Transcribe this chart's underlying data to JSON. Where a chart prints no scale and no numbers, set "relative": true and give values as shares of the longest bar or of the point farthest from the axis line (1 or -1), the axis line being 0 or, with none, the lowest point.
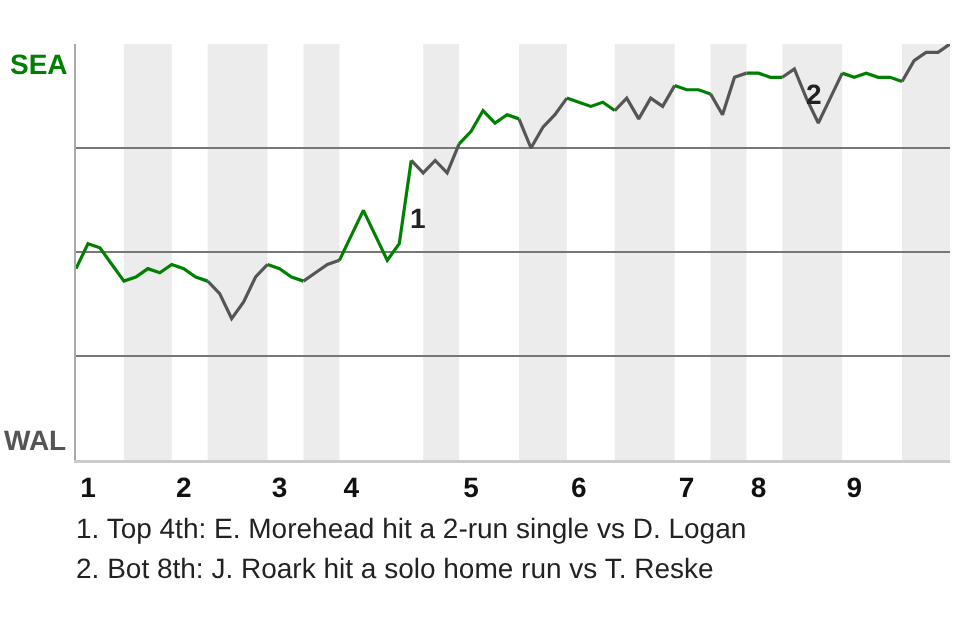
{
  "chart_data": {
    "type": "line",
    "relative": true,
    "grid": "y",
    "marker": "none",
    "line_style": "solid",
    "categories": [
      null,
      "1",
      null,
      null,
      null,
      null,
      null,
      null,
      null,
      "2",
      null,
      null,
      null,
      null,
      null,
      null,
      null,
      "3",
      null,
      null,
      null,
      null,
      null,
      "4",
      null,
      null,
      null,
      null,
      null,
      null,
      null,
      null,
      null,
      "5",
      null,
      null,
      null,
      null,
      null,
      null,
      null,
      null,
      "6",
      null,
      null,
      null,
      null,
      null,
      null,
      null,
      null,
      "7",
      null,
      null,
      null,
      null,
      null,
      "8",
      null,
      null,
      null,
      null,
      null,
      null,
      null,
      "9",
      null,
      null,
      null,
      null,
      null,
      null,
      null,
      null
    ],
    "series": [
      {
        "color": "#008000",
        "values": [
          0.46,
          0.52,
          0.51,
          0.47,
          0.43,
          0.44,
          0.46,
          0.45,
          0.47,
          0.46,
          0.44,
          0.43,
          null,
          null,
          null,
          null,
          null,
          null,
          null,
          null,
          null,
          null,
          null,
          null,
          null,
          null,
          null,
          null,
          null,
          null,
          null,
          null,
          null,
          null,
          null,
          null,
          null,
          null,
          null,
          null,
          null,
          null,
          null,
          null,
          null,
          null,
          null,
          null,
          null,
          null,
          null,
          null,
          null,
          null,
          null,
          null,
          null,
          null,
          null,
          null,
          null,
          null,
          null,
          null,
          null,
          null,
          null,
          null,
          null,
          null,
          null,
          null,
          null,
          null
        ]
      },
      {
        "color": "#555555",
        "values": [
          null,
          null,
          null,
          null,
          null,
          null,
          null,
          null,
          null,
          null,
          null,
          0.43,
          0.4,
          0.34,
          0.38,
          0.44,
          0.47,
          null,
          null,
          null,
          null,
          null,
          null,
          null,
          null,
          null,
          null,
          null,
          null,
          null,
          null,
          null,
          null,
          null,
          null,
          null,
          null,
          null,
          null,
          null,
          null,
          null,
          null,
          null,
          null,
          null,
          null,
          null,
          null,
          null,
          null,
          null,
          null,
          null,
          null,
          null,
          null,
          null,
          null,
          null,
          null,
          null,
          null,
          null,
          null,
          null,
          null,
          null,
          null,
          null,
          null,
          null,
          null,
          null
        ]
      },
      {
        "color": "#008000",
        "values": [
          null,
          null,
          null,
          null,
          null,
          null,
          null,
          null,
          null,
          null,
          null,
          null,
          null,
          null,
          null,
          null,
          0.47,
          0.46,
          0.44,
          0.43,
          null,
          null,
          null,
          null,
          null,
          null,
          null,
          null,
          null,
          null,
          null,
          null,
          null,
          null,
          null,
          null,
          null,
          null,
          null,
          null,
          null,
          null,
          null,
          null,
          null,
          null,
          null,
          null,
          null,
          null,
          null,
          null,
          null,
          null,
          null,
          null,
          null,
          null,
          null,
          null,
          null,
          null,
          null,
          null,
          null,
          null,
          null,
          null,
          null,
          null,
          null,
          null,
          null,
          null
        ]
      },
      {
        "color": "#555555",
        "values": [
          null,
          null,
          null,
          null,
          null,
          null,
          null,
          null,
          null,
          null,
          null,
          null,
          null,
          null,
          null,
          null,
          null,
          null,
          null,
          0.43,
          0.45,
          0.47,
          0.48,
          null,
          null,
          null,
          null,
          null,
          null,
          null,
          null,
          null,
          null,
          null,
          null,
          null,
          null,
          null,
          null,
          null,
          null,
          null,
          null,
          null,
          null,
          null,
          null,
          null,
          null,
          null,
          null,
          null,
          null,
          null,
          null,
          null,
          null,
          null,
          null,
          null,
          null,
          null,
          null,
          null,
          null,
          null,
          null,
          null,
          null,
          null,
          null,
          null,
          null,
          null
        ]
      },
      {
        "color": "#008000",
        "values": [
          null,
          null,
          null,
          null,
          null,
          null,
          null,
          null,
          null,
          null,
          null,
          null,
          null,
          null,
          null,
          null,
          null,
          null,
          null,
          null,
          null,
          null,
          0.48,
          0.54,
          0.6,
          0.54,
          0.48,
          0.52,
          0.72,
          null,
          null,
          null,
          null,
          null,
          null,
          null,
          null,
          null,
          null,
          null,
          null,
          null,
          null,
          null,
          null,
          null,
          null,
          null,
          null,
          null,
          null,
          null,
          null,
          null,
          null,
          null,
          null,
          null,
          null,
          null,
          null,
          null,
          null,
          null,
          null,
          null,
          null,
          null,
          null,
          null,
          null,
          null,
          null,
          null
        ]
      },
      {
        "color": "#555555",
        "values": [
          null,
          null,
          null,
          null,
          null,
          null,
          null,
          null,
          null,
          null,
          null,
          null,
          null,
          null,
          null,
          null,
          null,
          null,
          null,
          null,
          null,
          null,
          null,
          null,
          null,
          null,
          null,
          null,
          0.72,
          0.69,
          0.72,
          0.69,
          0.76,
          null,
          null,
          null,
          null,
          null,
          null,
          null,
          null,
          null,
          null,
          null,
          null,
          null,
          null,
          null,
          null,
          null,
          null,
          null,
          null,
          null,
          null,
          null,
          null,
          null,
          null,
          null,
          null,
          null,
          null,
          null,
          null,
          null,
          null,
          null,
          null,
          null,
          null,
          null,
          null,
          null
        ]
      },
      {
        "color": "#008000",
        "values": [
          null,
          null,
          null,
          null,
          null,
          null,
          null,
          null,
          null,
          null,
          null,
          null,
          null,
          null,
          null,
          null,
          null,
          null,
          null,
          null,
          null,
          null,
          null,
          null,
          null,
          null,
          null,
          null,
          null,
          null,
          null,
          null,
          0.76,
          0.79,
          0.84,
          0.81,
          0.83,
          0.82,
          null,
          null,
          null,
          null,
          null,
          null,
          null,
          null,
          null,
          null,
          null,
          null,
          null,
          null,
          null,
          null,
          null,
          null,
          null,
          null,
          null,
          null,
          null,
          null,
          null,
          null,
          null,
          null,
          null,
          null,
          null,
          null,
          null,
          null,
          null,
          null
        ]
      },
      {
        "color": "#555555",
        "values": [
          null,
          null,
          null,
          null,
          null,
          null,
          null,
          null,
          null,
          null,
          null,
          null,
          null,
          null,
          null,
          null,
          null,
          null,
          null,
          null,
          null,
          null,
          null,
          null,
          null,
          null,
          null,
          null,
          null,
          null,
          null,
          null,
          null,
          null,
          null,
          null,
          null,
          0.82,
          0.75,
          0.8,
          0.83,
          0.87,
          null,
          null,
          null,
          null,
          null,
          null,
          null,
          null,
          null,
          null,
          null,
          null,
          null,
          null,
          null,
          null,
          null,
          null,
          null,
          null,
          null,
          null,
          null,
          null,
          null,
          null,
          null,
          null,
          null,
          null,
          null,
          null
        ]
      },
      {
        "color": "#008000",
        "values": [
          null,
          null,
          null,
          null,
          null,
          null,
          null,
          null,
          null,
          null,
          null,
          null,
          null,
          null,
          null,
          null,
          null,
          null,
          null,
          null,
          null,
          null,
          null,
          null,
          null,
          null,
          null,
          null,
          null,
          null,
          null,
          null,
          null,
          null,
          null,
          null,
          null,
          null,
          null,
          null,
          null,
          0.87,
          0.86,
          0.85,
          0.86,
          0.84,
          null,
          null,
          null,
          null,
          null,
          null,
          null,
          null,
          null,
          null,
          null,
          null,
          null,
          null,
          null,
          null,
          null,
          null,
          null,
          null,
          null,
          null,
          null,
          null,
          null,
          null,
          null,
          null
        ]
      },
      {
        "color": "#555555",
        "values": [
          null,
          null,
          null,
          null,
          null,
          null,
          null,
          null,
          null,
          null,
          null,
          null,
          null,
          null,
          null,
          null,
          null,
          null,
          null,
          null,
          null,
          null,
          null,
          null,
          null,
          null,
          null,
          null,
          null,
          null,
          null,
          null,
          null,
          null,
          null,
          null,
          null,
          null,
          null,
          null,
          null,
          null,
          null,
          null,
          null,
          0.84,
          0.87,
          0.82,
          0.87,
          0.85,
          0.9,
          null,
          null,
          null,
          null,
          null,
          null,
          null,
          null,
          null,
          null,
          null,
          null,
          null,
          null,
          null,
          null,
          null,
          null,
          null,
          null,
          null,
          null,
          null
        ]
      },
      {
        "color": "#008000",
        "values": [
          null,
          null,
          null,
          null,
          null,
          null,
          null,
          null,
          null,
          null,
          null,
          null,
          null,
          null,
          null,
          null,
          null,
          null,
          null,
          null,
          null,
          null,
          null,
          null,
          null,
          null,
          null,
          null,
          null,
          null,
          null,
          null,
          null,
          null,
          null,
          null,
          null,
          null,
          null,
          null,
          null,
          null,
          null,
          null,
          null,
          null,
          null,
          null,
          null,
          null,
          0.9,
          0.89,
          0.89,
          0.88,
          null,
          null,
          null,
          null,
          null,
          null,
          null,
          null,
          null,
          null,
          null,
          null,
          null,
          null,
          null,
          null,
          null,
          null,
          null,
          null
        ]
      },
      {
        "color": "#555555",
        "values": [
          null,
          null,
          null,
          null,
          null,
          null,
          null,
          null,
          null,
          null,
          null,
          null,
          null,
          null,
          null,
          null,
          null,
          null,
          null,
          null,
          null,
          null,
          null,
          null,
          null,
          null,
          null,
          null,
          null,
          null,
          null,
          null,
          null,
          null,
          null,
          null,
          null,
          null,
          null,
          null,
          null,
          null,
          null,
          null,
          null,
          null,
          null,
          null,
          null,
          null,
          null,
          null,
          null,
          0.88,
          0.83,
          0.92,
          0.93,
          null,
          null,
          null,
          null,
          null,
          null,
          null,
          null,
          null,
          null,
          null,
          null,
          null,
          null,
          null,
          null,
          null
        ]
      },
      {
        "color": "#008000",
        "values": [
          null,
          null,
          null,
          null,
          null,
          null,
          null,
          null,
          null,
          null,
          null,
          null,
          null,
          null,
          null,
          null,
          null,
          null,
          null,
          null,
          null,
          null,
          null,
          null,
          null,
          null,
          null,
          null,
          null,
          null,
          null,
          null,
          null,
          null,
          null,
          null,
          null,
          null,
          null,
          null,
          null,
          null,
          null,
          null,
          null,
          null,
          null,
          null,
          null,
          null,
          null,
          null,
          null,
          null,
          null,
          null,
          0.93,
          0.93,
          0.92,
          0.92,
          null,
          null,
          null,
          null,
          null,
          null,
          null,
          null,
          null,
          null,
          null,
          null,
          null,
          null
        ]
      },
      {
        "color": "#555555",
        "values": [
          null,
          null,
          null,
          null,
          null,
          null,
          null,
          null,
          null,
          null,
          null,
          null,
          null,
          null,
          null,
          null,
          null,
          null,
          null,
          null,
          null,
          null,
          null,
          null,
          null,
          null,
          null,
          null,
          null,
          null,
          null,
          null,
          null,
          null,
          null,
          null,
          null,
          null,
          null,
          null,
          null,
          null,
          null,
          null,
          null,
          null,
          null,
          null,
          null,
          null,
          null,
          null,
          null,
          null,
          null,
          null,
          null,
          null,
          null,
          0.92,
          0.94,
          0.87,
          0.81,
          0.87,
          0.93,
          null,
          null,
          null,
          null,
          null,
          null,
          null,
          null,
          null
        ]
      },
      {
        "color": "#008000",
        "values": [
          null,
          null,
          null,
          null,
          null,
          null,
          null,
          null,
          null,
          null,
          null,
          null,
          null,
          null,
          null,
          null,
          null,
          null,
          null,
          null,
          null,
          null,
          null,
          null,
          null,
          null,
          null,
          null,
          null,
          null,
          null,
          null,
          null,
          null,
          null,
          null,
          null,
          null,
          null,
          null,
          null,
          null,
          null,
          null,
          null,
          null,
          null,
          null,
          null,
          null,
          null,
          null,
          null,
          null,
          null,
          null,
          null,
          null,
          null,
          null,
          null,
          null,
          null,
          null,
          0.93,
          0.92,
          0.93,
          0.92,
          0.92,
          0.91,
          null,
          null,
          null,
          null
        ]
      },
      {
        "color": "#555555",
        "values": [
          null,
          null,
          null,
          null,
          null,
          null,
          null,
          null,
          null,
          null,
          null,
          null,
          null,
          null,
          null,
          null,
          null,
          null,
          null,
          null,
          null,
          null,
          null,
          null,
          null,
          null,
          null,
          null,
          null,
          null,
          null,
          null,
          null,
          null,
          null,
          null,
          null,
          null,
          null,
          null,
          null,
          null,
          null,
          null,
          null,
          null,
          null,
          null,
          null,
          null,
          null,
          null,
          null,
          null,
          null,
          null,
          null,
          null,
          null,
          null,
          null,
          null,
          null,
          null,
          null,
          null,
          null,
          null,
          null,
          0.91,
          0.96,
          0.98,
          0.98,
          1
        ]
      }
    ],
    "annotations": [
      "SEA",
      "WAL",
      "1",
      "2",
      "1. Top 4th: E. Morehead hit a 2-run single vs D. Logan",
      "2. Bot 8th: J. Roark hit a solo home run vs T. Reske"
    ]
  }
}
